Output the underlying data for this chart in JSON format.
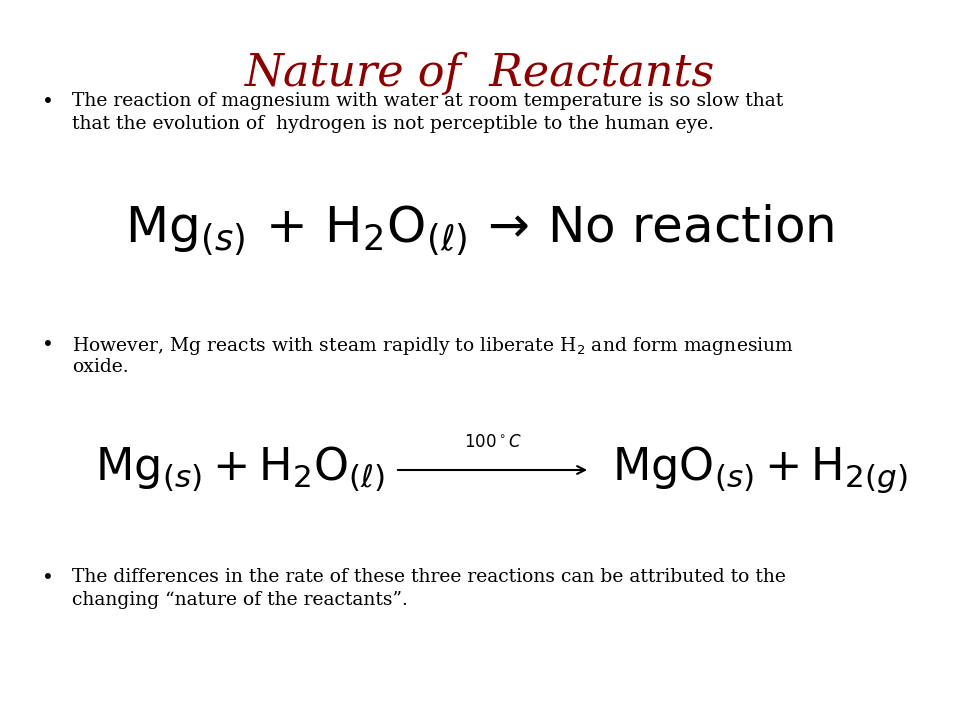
{
  "title": "Nature of  Reactants",
  "title_color": "#8B0000",
  "title_fontsize": 32,
  "bg_color": "#FFFFFF",
  "bullet1_line1": "The reaction of magnesium with water at room temperature is so slow that",
  "bullet1_line2": "that the evolution of  hydrogen is not perceptible to the human eye.",
  "bullet2_line1": "However, Mg reacts with steam rapidly to liberate H$_2$ and form magnesium",
  "bullet2_line2": "oxide.",
  "bullet3_line1": "The differences in the rate of these three reactions can be attributed to the",
  "bullet3_line2": "changing “nature of the reactants”.",
  "text_fontsize": 13.5,
  "eq1_fontsize": 36,
  "eq2_fontsize": 32
}
